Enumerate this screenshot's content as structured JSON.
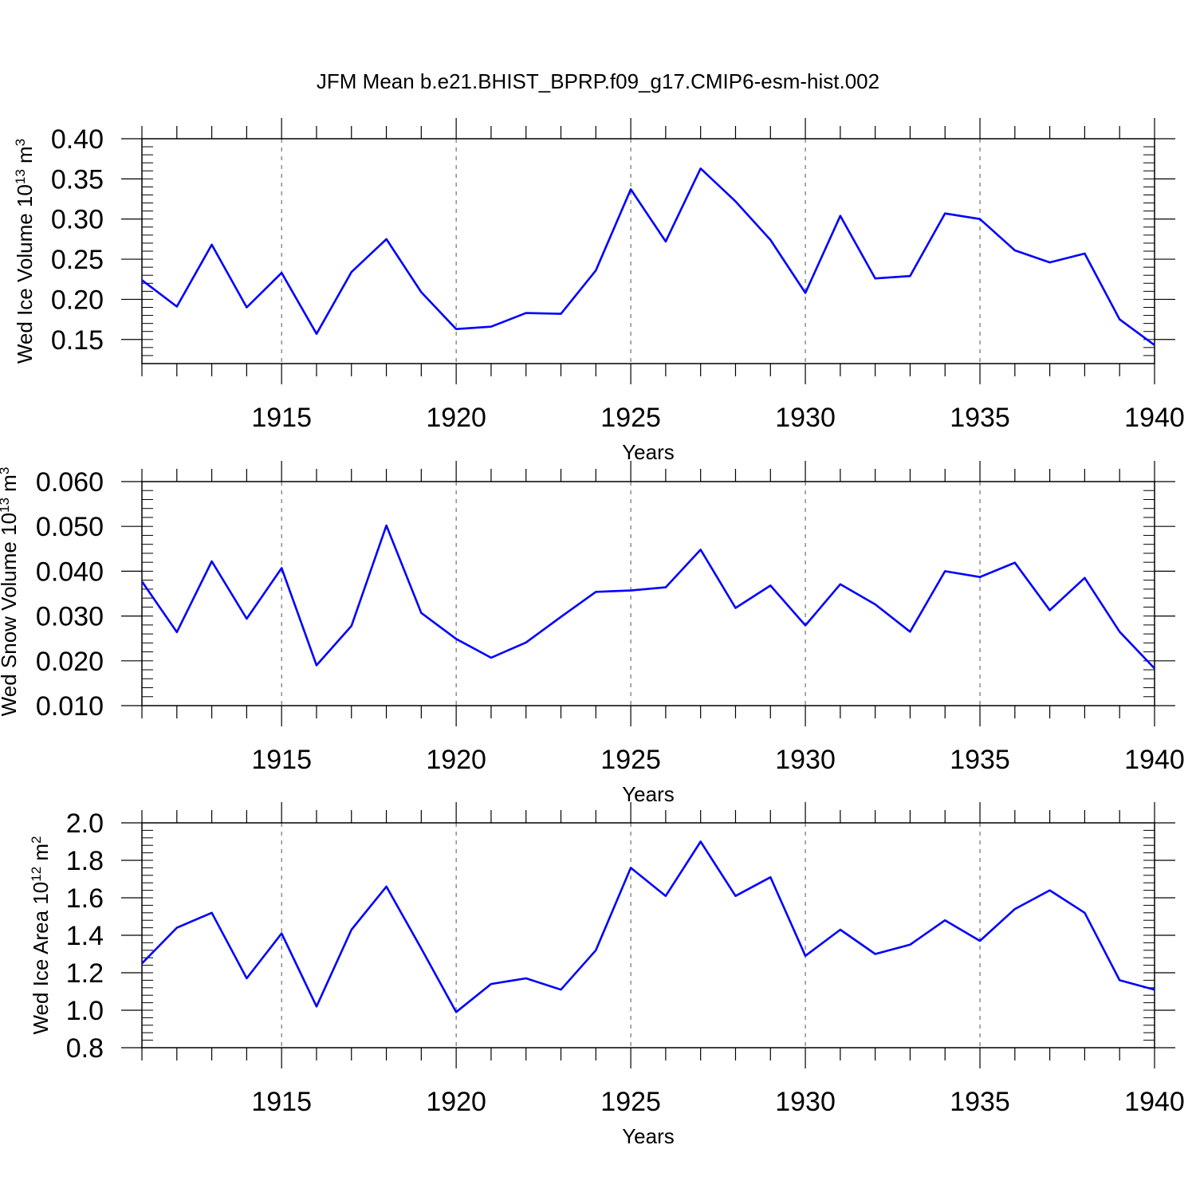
{
  "title": "JFM Mean b.e21.BHIST_BPRP.f09_g17.CMIP6-esm-hist.002",
  "colors": {
    "series": "#0000ff",
    "axis": "#000000",
    "grid": "#555555"
  },
  "chart_data": [
    {
      "type": "line",
      "ylabel": {
        "base": "Wed Ice Volume 10",
        "exp": "13",
        "unit": " m",
        "unit_exp": "3"
      },
      "xlabel": "Years",
      "xlim": [
        1911,
        1940
      ],
      "ylim": [
        0.12,
        0.4
      ],
      "x_ticks": [
        1915,
        1920,
        1925,
        1930,
        1935,
        1940
      ],
      "y_ticks": [
        0.15,
        0.2,
        0.25,
        0.3,
        0.35,
        0.4
      ],
      "y_tick_labels": [
        "0.15",
        "0.20",
        "0.25",
        "0.30",
        "0.35",
        "0.40"
      ],
      "grid": "vertical dashed at major x ticks",
      "x": [
        1911,
        1912,
        1913,
        1914,
        1915,
        1916,
        1917,
        1918,
        1919,
        1920,
        1921,
        1922,
        1923,
        1924,
        1925,
        1926,
        1927,
        1928,
        1929,
        1930,
        1931,
        1932,
        1933,
        1934,
        1935,
        1936,
        1937,
        1938,
        1939,
        1940
      ],
      "series": [
        {
          "values": [
            0.224,
            0.191,
            0.268,
            0.19,
            0.233,
            0.157,
            0.234,
            0.275,
            0.209,
            0.163,
            0.166,
            0.183,
            0.182,
            0.236,
            0.337,
            0.272,
            0.363,
            0.322,
            0.274,
            0.208,
            0.304,
            0.226,
            0.229,
            0.307,
            0.3,
            0.261,
            0.246,
            0.257,
            0.175,
            0.143
          ]
        }
      ]
    },
    {
      "type": "line",
      "ylabel": {
        "base": "Wed Snow Volume 10",
        "exp": "13",
        "unit": " m",
        "unit_exp": "3"
      },
      "xlabel": "Years",
      "xlim": [
        1911,
        1940
      ],
      "ylim": [
        0.01,
        0.06
      ],
      "x_ticks": [
        1915,
        1920,
        1925,
        1930,
        1935,
        1940
      ],
      "y_ticks": [
        0.01,
        0.02,
        0.03,
        0.04,
        0.05,
        0.06
      ],
      "y_tick_labels": [
        "0.010",
        "0.020",
        "0.030",
        "0.040",
        "0.050",
        "0.060"
      ],
      "grid": "vertical dashed at major x ticks",
      "x": [
        1911,
        1912,
        1913,
        1914,
        1915,
        1916,
        1917,
        1918,
        1919,
        1920,
        1921,
        1922,
        1923,
        1924,
        1925,
        1926,
        1927,
        1928,
        1929,
        1930,
        1931,
        1932,
        1933,
        1934,
        1935,
        1936,
        1937,
        1938,
        1939,
        1940
      ],
      "series": [
        {
          "values": [
            0.0377,
            0.0264,
            0.0422,
            0.0294,
            0.0407,
            0.019,
            0.0278,
            0.0502,
            0.0307,
            0.0249,
            0.0207,
            0.0241,
            0.0298,
            0.0354,
            0.0357,
            0.0364,
            0.0448,
            0.0318,
            0.0368,
            0.0279,
            0.0371,
            0.0326,
            0.0265,
            0.04,
            0.0387,
            0.0419,
            0.0313,
            0.0385,
            0.0265,
            0.0183
          ]
        }
      ]
    },
    {
      "type": "line",
      "ylabel": {
        "base": "Wed Ice Area 10",
        "exp": "12",
        "unit": " m",
        "unit_exp": "2"
      },
      "xlabel": "Years",
      "xlim": [
        1911,
        1940
      ],
      "ylim": [
        0.8,
        2.0
      ],
      "x_ticks": [
        1915,
        1920,
        1925,
        1930,
        1935,
        1940
      ],
      "y_ticks": [
        0.8,
        1.0,
        1.2,
        1.4,
        1.6,
        1.8,
        2.0
      ],
      "y_tick_labels": [
        "0.8",
        "1.0",
        "1.2",
        "1.4",
        "1.6",
        "1.8",
        "2.0"
      ],
      "grid": "vertical dashed at major x ticks",
      "x": [
        1911,
        1912,
        1913,
        1914,
        1915,
        1916,
        1917,
        1918,
        1919,
        1920,
        1921,
        1922,
        1923,
        1924,
        1925,
        1926,
        1927,
        1928,
        1929,
        1930,
        1931,
        1932,
        1933,
        1934,
        1935,
        1936,
        1937,
        1938,
        1939,
        1940
      ],
      "series": [
        {
          "values": [
            1.25,
            1.44,
            1.52,
            1.17,
            1.41,
            1.02,
            1.43,
            1.66,
            1.33,
            0.99,
            1.14,
            1.17,
            1.11,
            1.32,
            1.76,
            1.61,
            1.9,
            1.61,
            1.71,
            1.29,
            1.43,
            1.3,
            1.35,
            1.48,
            1.37,
            1.54,
            1.64,
            1.52,
            1.16,
            1.11
          ]
        }
      ]
    }
  ]
}
